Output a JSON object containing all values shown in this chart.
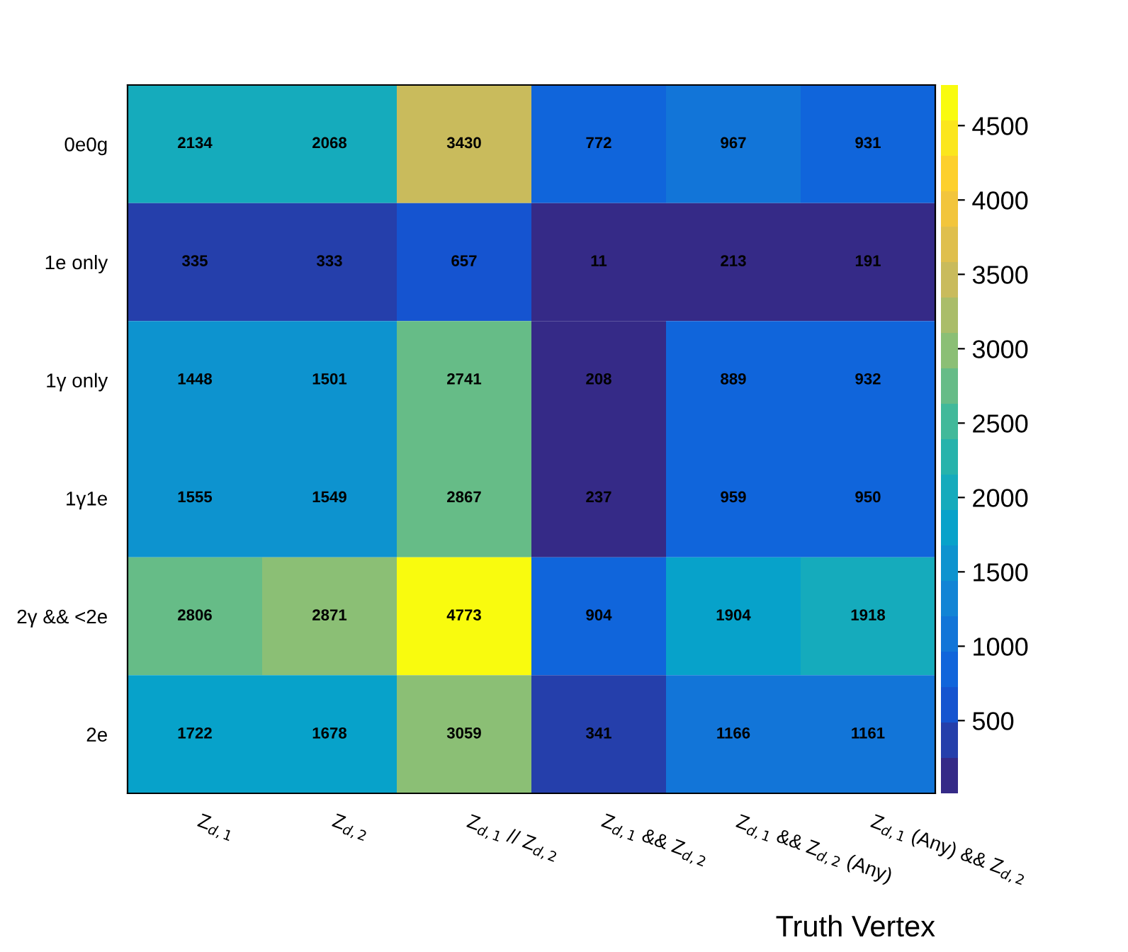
{
  "chart_data": {
    "type": "heatmap",
    "xlabel": "Truth Vertex",
    "categories": [
      "Z$_{d,1}$",
      "Z$_{d,2}$",
      "Z$_{d,1}$ // Z$_{d,2}$",
      "Z$_{d,1}$ && Z$_{d,2}$",
      "Z$_{d,1}$ && Z$_{d,2}$ (Any)",
      "Z$_{d,1}$ (Any) && Z$_{d,2}$"
    ],
    "y_categories": [
      "0e0g",
      "1e only",
      "1γ only",
      "1γ1e",
      "2γ && <2e",
      "2e"
    ],
    "cells": [
      [
        2134,
        2068,
        3430,
        772,
        967,
        931
      ],
      [
        335,
        333,
        657,
        11,
        213,
        191
      ],
      [
        1448,
        1501,
        2741,
        208,
        889,
        932
      ],
      [
        1555,
        1549,
        2867,
        237,
        959,
        950
      ],
      [
        2806,
        2871,
        4773,
        904,
        1904,
        1918
      ],
      [
        1722,
        1678,
        3059,
        341,
        1166,
        1161
      ]
    ],
    "clim": [
      11,
      4773
    ],
    "cticks": [
      500,
      1000,
      1500,
      2000,
      2500,
      3000,
      3500,
      4000,
      4500
    ],
    "data_labels": true,
    "grid": false
  }
}
